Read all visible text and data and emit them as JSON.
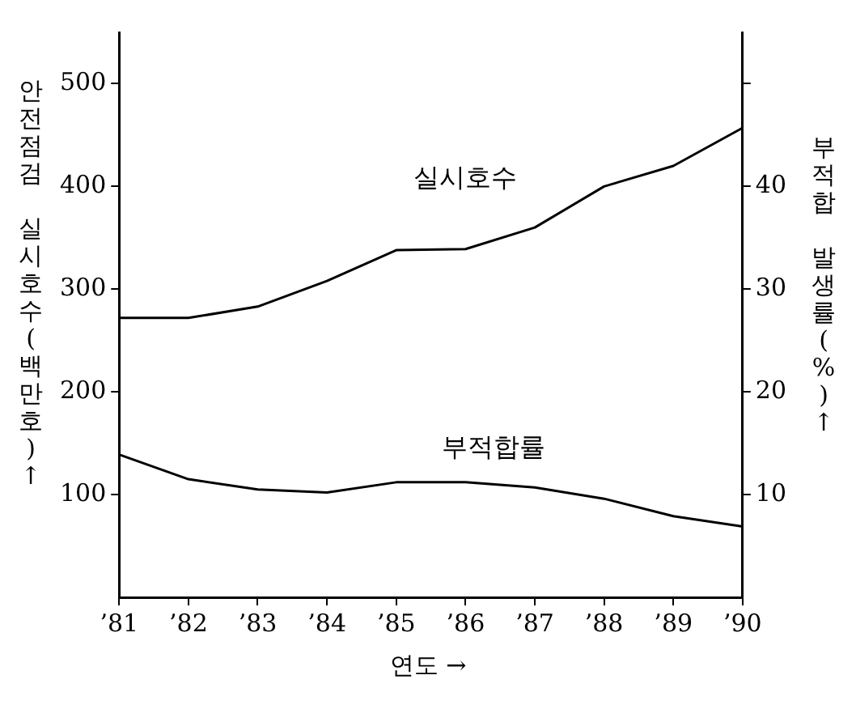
{
  "chart_data": {
    "type": "line",
    "xlabel": "연도 →",
    "ylabel": "안전점검 실시호수(백만호)↑",
    "y2label": "부적합 발생률(%)↑",
    "categories": [
      "’81",
      "’82",
      "’83",
      "’84",
      "’85",
      "’86",
      "’87",
      "’88",
      "’89",
      "’90"
    ],
    "series": [
      {
        "name": "실시호수",
        "color": "#000000",
        "values": [
          272,
          272,
          283,
          308,
          338,
          339,
          360,
          400,
          420,
          457
        ]
      },
      {
        "name": "부적합률",
        "color": "#000000",
        "axis": "y2",
        "values": [
          13.9,
          11.5,
          10.5,
          10.2,
          11.2,
          11.2,
          10.7,
          9.6,
          7.9,
          6.9
        ]
      }
    ],
    "ylim": [
      0,
      550
    ],
    "yticks": [
      100,
      200,
      300,
      400,
      500
    ],
    "y2lim": [
      0,
      55
    ],
    "y2ticks": [
      10,
      20,
      30,
      40,
      {
        "value": 50,
        "label": null
      }
    ],
    "grid": false,
    "legend": false,
    "marker": "none",
    "line_style": "solid"
  }
}
